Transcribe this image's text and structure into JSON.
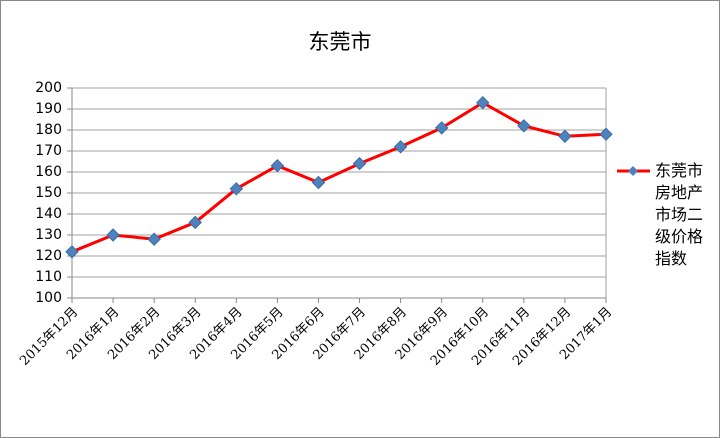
{
  "chart_data": {
    "type": "line",
    "title": "东莞市",
    "categories": [
      "2015年12月",
      "2016年1月",
      "2016年2月",
      "2016年3月",
      "2016年4月",
      "2016年5月",
      "2016年6月",
      "2016年7月",
      "2016年8月",
      "2016年9月",
      "2016年10月",
      "2016年11月",
      "2016年12月",
      "2017年1月"
    ],
    "series": [
      {
        "name": "东莞市房地产市场二级价格指数",
        "color": "#ff0000",
        "marker_color": "#4f81bd",
        "values": [
          122,
          130,
          128,
          136,
          152,
          163,
          155,
          164,
          172,
          181,
          193,
          182,
          177,
          178
        ]
      }
    ],
    "ylim": [
      100,
      200
    ],
    "yticks": [
      100,
      110,
      120,
      130,
      140,
      150,
      160,
      170,
      180,
      190,
      200
    ],
    "grid": true,
    "legend": "right"
  }
}
